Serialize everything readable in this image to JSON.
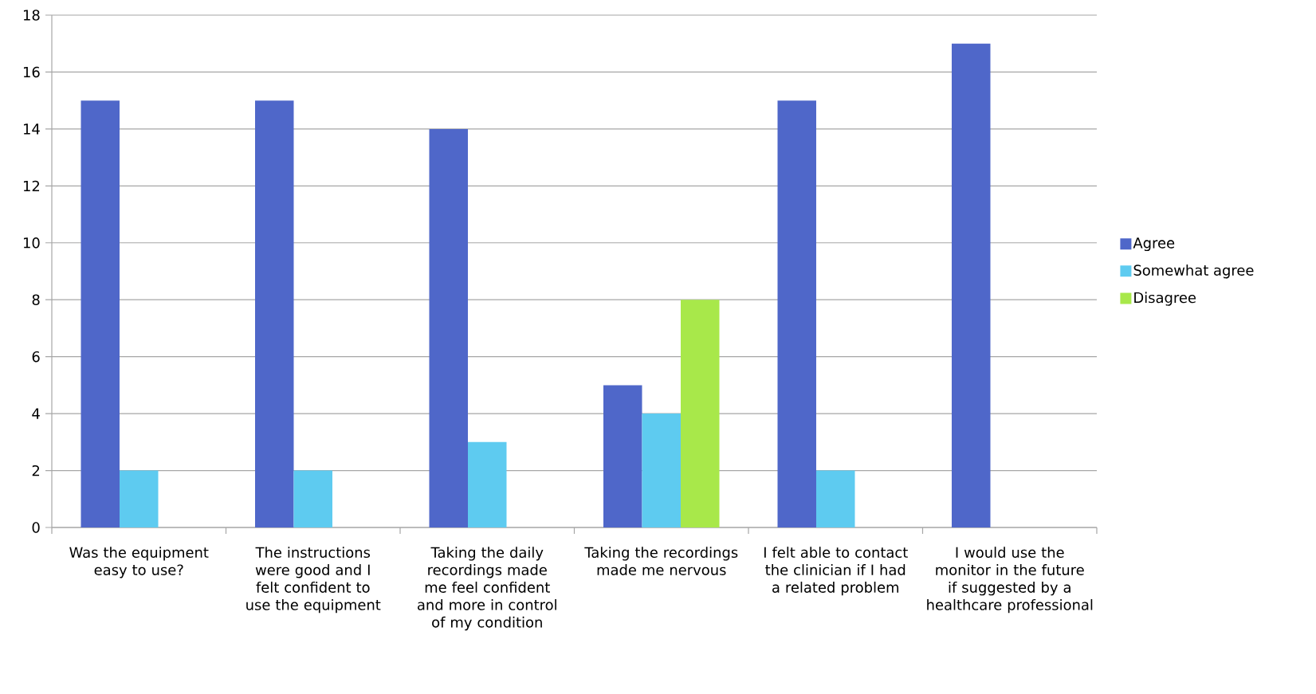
{
  "chart_data": {
    "type": "bar",
    "categories": [
      "Was the equipment easy to use?",
      "The instructions were good and I felt confident to use the equipment",
      "Taking the daily recordings made me feel confident and more in control of my condition",
      "Taking the recordings made me nervous",
      "I felt able to contact the clinician if I had a related problem",
      "I would use the monitor in the future if suggested by a healthcare professional"
    ],
    "series": [
      {
        "name": "Agree",
        "color": "#4f67c9",
        "values": [
          15,
          15,
          14,
          5,
          15,
          17
        ]
      },
      {
        "name": "Somewhat agree",
        "color": "#5ecbf0",
        "values": [
          2,
          2,
          3,
          4,
          2,
          null
        ]
      },
      {
        "name": "Disagree",
        "color": "#a8e84a",
        "values": [
          null,
          null,
          null,
          8,
          null,
          null
        ]
      }
    ],
    "ylim": [
      0,
      18
    ],
    "yticks": [
      0,
      2,
      4,
      6,
      8,
      10,
      12,
      14,
      16,
      18
    ],
    "grid": "y",
    "legend": "right"
  }
}
